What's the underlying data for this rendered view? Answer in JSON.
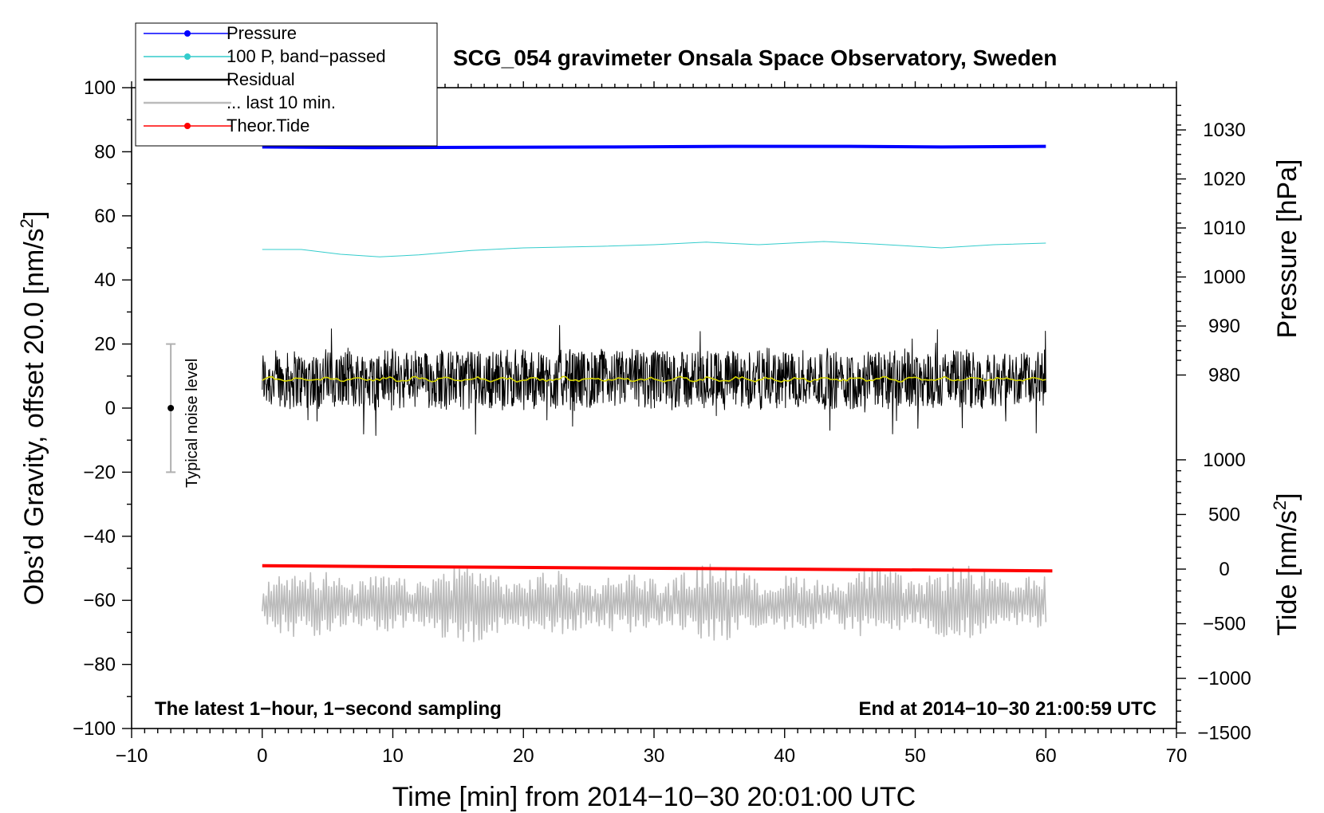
{
  "chart_data": {
    "type": "line",
    "title": "SCG_054 gravimeter Onsala Space Observatory, Sweden",
    "xlabel": "Time [min] from 2014−10−30 20:01:00 UTC",
    "ylabel_left_main": "Obs’d Gravity, offset 20.0 [nm/s",
    "ylabel_left_sup": "2",
    "ylabel_left_end": "]",
    "ylabel_right_pressure": "Pressure [hPa]",
    "ylabel_right_tide_main": "Tide [nm/s",
    "ylabel_right_tide_sup": "2",
    "ylabel_right_tide_end": "]",
    "xlim": [
      -10,
      70
    ],
    "ylim": [
      -100,
      100
    ],
    "x_ticks": [
      "−10",
      "0",
      "10",
      "20",
      "30",
      "40",
      "50",
      "60",
      "70"
    ],
    "y_ticks": [
      "−100",
      "−80",
      "−60",
      "−40",
      "−20",
      "0",
      "20",
      "40",
      "60",
      "80",
      "100"
    ],
    "pressure_axis": {
      "ticks": [
        "980",
        "990",
        "1000",
        "1010",
        "1020",
        "1030"
      ],
      "values": [
        980,
        990,
        1000,
        1010,
        1020,
        1030
      ]
    },
    "tide_axis": {
      "ticks": [
        "−1500",
        "−1000",
        "−500",
        "0",
        "500",
        "1000"
      ],
      "values": [
        -1500,
        -1000,
        -500,
        0,
        500,
        1000
      ]
    },
    "note_left": "The latest 1−hour, 1−second sampling",
    "note_right": "End at 2014−10−30 21:00:59 UTC",
    "noise_label": "Typical noise level",
    "noise_bar": {
      "x": -7,
      "center": 0,
      "low": -20,
      "high": 20
    },
    "legend": [
      {
        "label": "Pressure",
        "color": "#0000ff",
        "marker": true
      },
      {
        "label": "100 P, band−passed",
        "color": "#33cccc",
        "marker": true
      },
      {
        "label": "Residual",
        "color": "#000000",
        "marker": false
      },
      {
        "label": "... last 10 min.",
        "color": "#bbbbbb",
        "marker": false
      },
      {
        "label": "Theor.Tide",
        "color": "#ff0000",
        "marker": true
      }
    ],
    "series": [
      {
        "name": "Pressure",
        "color": "#0000ff",
        "x": [
          0,
          8,
          18,
          27,
          36,
          45,
          52,
          60
        ],
        "y": [
          81.5,
          81.3,
          81.4,
          81.5,
          81.7,
          81.7,
          81.5,
          81.7
        ]
      },
      {
        "name": "100 P, band-passed",
        "color": "#33cccc",
        "x": [
          0,
          3,
          6,
          9,
          12,
          16,
          20,
          26,
          30,
          34,
          38,
          43,
          47,
          52,
          56,
          60
        ],
        "y": [
          49.5,
          49.5,
          48.0,
          47.2,
          47.8,
          49.2,
          50.0,
          50.5,
          51.0,
          51.8,
          51.0,
          52.0,
          51.2,
          50.0,
          51.0,
          51.5
        ]
      },
      {
        "name": "Residual",
        "color": "#000000",
        "center": 9,
        "spread": 9,
        "x_start": 0,
        "x_end": 60,
        "samples": 1800
      },
      {
        "name": "Residual smoothed",
        "color": "#d4d400",
        "center": 9,
        "spread": 0.8,
        "x_start": 0,
        "x_end": 60,
        "samples": 240
      },
      {
        "name": "... last 10 min.",
        "color": "#bbbbbb",
        "center": -61,
        "spread": 9,
        "x_start": 0,
        "x_end": 60,
        "samples": 600
      },
      {
        "name": "Theor.Tide",
        "color": "#ff0000",
        "x": [
          0,
          60.5
        ],
        "y": [
          -49.2,
          -50.8
        ]
      }
    ]
  }
}
